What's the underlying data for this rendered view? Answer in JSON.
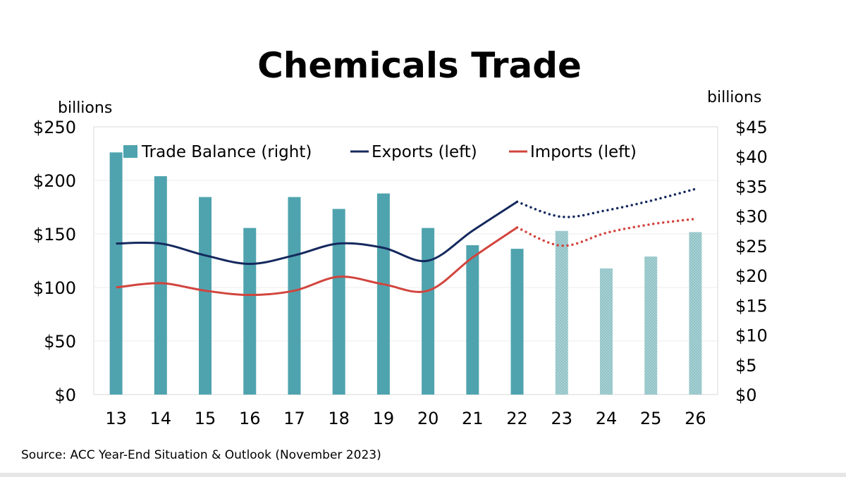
{
  "chart_data": {
    "type": "bar+line",
    "title": "Chemicals Trade",
    "left_axis_label": "billions",
    "right_axis_label": "billions",
    "categories": [
      "13",
      "14",
      "15",
      "16",
      "17",
      "18",
      "19",
      "20",
      "21",
      "22",
      "23",
      "24",
      "25",
      "26"
    ],
    "left_ylim": [
      0,
      250
    ],
    "left_ticks": [
      "$0",
      "$50",
      "$100",
      "$150",
      "$200",
      "$250"
    ],
    "right_ylim": [
      0,
      45
    ],
    "right_ticks": [
      "$0",
      "$5",
      "$10",
      "$15",
      "$20",
      "$25",
      "$30",
      "$35",
      "$40",
      "$45"
    ],
    "grid": true,
    "legend_position": "top",
    "forecast_start": "23",
    "series": [
      {
        "name": "Trade Balance (right)",
        "type": "bar",
        "axis": "right",
        "color": "#4fa3ae",
        "forecast_color": "#a9d1d3",
        "values": [
          40.7,
          36.7,
          33.2,
          28.0,
          33.2,
          31.2,
          33.8,
          28.0,
          25.1,
          24.5,
          27.5,
          21.2,
          23.2,
          27.3
        ]
      },
      {
        "name": "Exports (left)",
        "type": "line",
        "axis": "left",
        "color": "#15295e",
        "values": [
          141,
          141,
          130,
          122,
          130,
          141,
          137,
          125,
          153,
          180,
          166,
          172,
          181,
          192
        ]
      },
      {
        "name": "Imports (left)",
        "type": "line",
        "axis": "left",
        "color": "#d2443d",
        "values": [
          100,
          104,
          97,
          93,
          97,
          110,
          103,
          97,
          128,
          156,
          139,
          151,
          159,
          164
        ]
      }
    ],
    "source": "Source: ACC Year-End Situation & Outlook (November 2023)"
  }
}
